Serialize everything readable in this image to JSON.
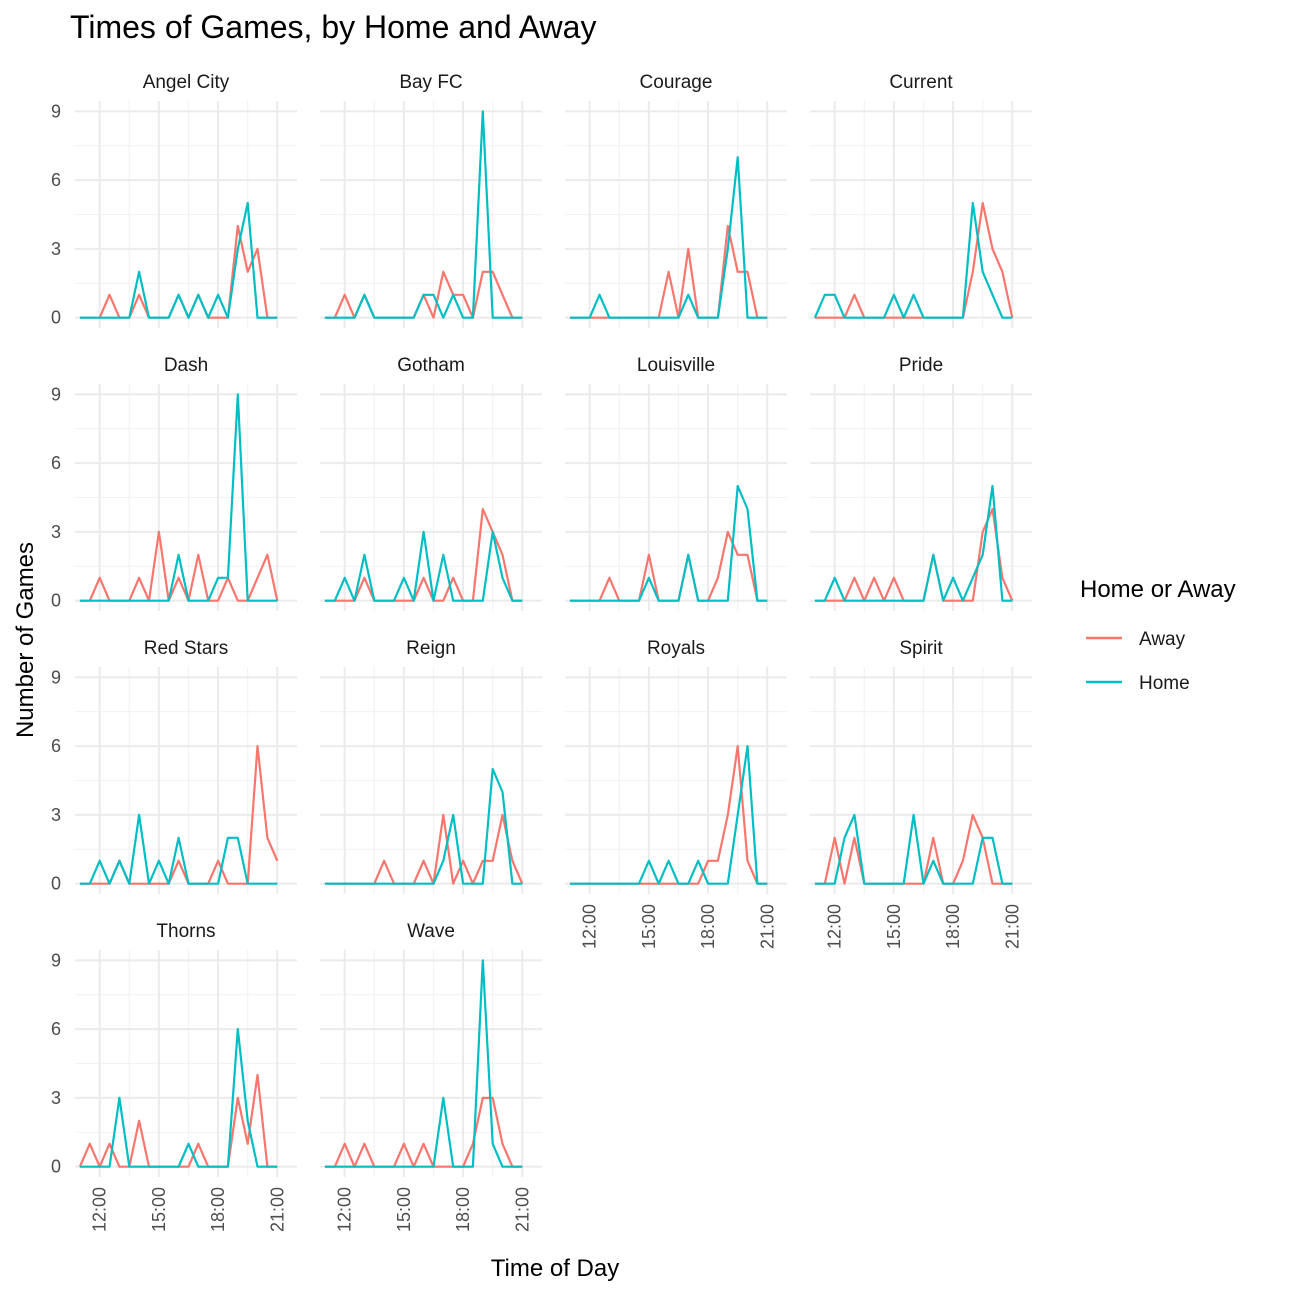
{
  "chart_data": {
    "type": "line",
    "title": "Times of Games, by Home and Away",
    "xlabel": "Time of Day",
    "ylabel": "Number of Games",
    "legend": {
      "title": "Home or Away",
      "position": "right",
      "entries": [
        {
          "name": "Away",
          "color": "#F8766D"
        },
        {
          "name": "Home",
          "color": "#00BFC4"
        }
      ]
    },
    "x_ticks": [
      12,
      15,
      18,
      21
    ],
    "x_tick_labels": [
      "12:00",
      "15:00",
      "18:00",
      "21:00"
    ],
    "xlim": [
      10.75,
      22.0
    ],
    "y_ticks": [
      0,
      3,
      6,
      9
    ],
    "y_tick_labels": [
      "0",
      "3",
      "6",
      "9"
    ],
    "ylim": [
      -0.45,
      9.45
    ],
    "grid": true,
    "x": [
      11,
      11.5,
      12,
      12.5,
      13,
      13.5,
      14,
      14.5,
      15,
      15.5,
      16,
      16.5,
      17,
      17.5,
      18,
      18.5,
      19,
      19.5,
      20,
      20.5,
      21
    ],
    "panels": [
      {
        "name": "Angel City",
        "series": [
          {
            "name": "Away",
            "values": [
              0,
              0,
              0,
              1,
              0,
              0,
              1,
              0,
              0,
              0,
              1,
              0,
              1,
              0,
              0,
              0,
              4,
              2,
              3,
              0,
              0
            ]
          },
          {
            "name": "Home",
            "values": [
              0,
              0,
              0,
              0,
              0,
              0,
              2,
              0,
              0,
              0,
              1,
              0,
              1,
              0,
              1,
              0,
              3,
              5,
              0,
              0,
              0
            ]
          }
        ]
      },
      {
        "name": "Bay FC",
        "series": [
          {
            "name": "Away",
            "values": [
              0,
              0,
              1,
              0,
              1,
              0,
              0,
              0,
              0,
              0,
              1,
              0,
              2,
              1,
              1,
              0,
              2,
              2,
              1,
              0,
              0
            ]
          },
          {
            "name": "Home",
            "values": [
              0,
              0,
              0,
              0,
              1,
              0,
              0,
              0,
              0,
              0,
              1,
              1,
              0,
              1,
              0,
              0,
              9,
              0,
              0,
              0,
              0
            ]
          }
        ]
      },
      {
        "name": "Courage",
        "series": [
          {
            "name": "Away",
            "values": [
              0,
              0,
              0,
              0,
              0,
              0,
              0,
              0,
              0,
              0,
              2,
              0,
              3,
              0,
              0,
              0,
              4,
              2,
              2,
              0,
              0
            ]
          },
          {
            "name": "Home",
            "values": [
              0,
              0,
              0,
              1,
              0,
              0,
              0,
              0,
              0,
              0,
              0,
              0,
              1,
              0,
              0,
              0,
              3,
              7,
              0,
              0,
              0
            ]
          }
        ]
      },
      {
        "name": "Current",
        "series": [
          {
            "name": "Away",
            "values": [
              0,
              0,
              0,
              0,
              1,
              0,
              0,
              0,
              0,
              0,
              0,
              0,
              0,
              0,
              0,
              0,
              2,
              5,
              3,
              2,
              0
            ]
          },
          {
            "name": "Home",
            "values": [
              0,
              1,
              1,
              0,
              0,
              0,
              0,
              0,
              1,
              0,
              1,
              0,
              0,
              0,
              0,
              0,
              5,
              2,
              1,
              0,
              0
            ]
          }
        ]
      },
      {
        "name": "Dash",
        "series": [
          {
            "name": "Away",
            "values": [
              0,
              0,
              1,
              0,
              0,
              0,
              1,
              0,
              3,
              0,
              1,
              0,
              2,
              0,
              0,
              1,
              0,
              0,
              1,
              2,
              0
            ]
          },
          {
            "name": "Home",
            "values": [
              0,
              0,
              0,
              0,
              0,
              0,
              0,
              0,
              0,
              0,
              2,
              0,
              0,
              0,
              1,
              1,
              9,
              0,
              0,
              0,
              0
            ]
          }
        ]
      },
      {
        "name": "Gotham",
        "series": [
          {
            "name": "Away",
            "values": [
              0,
              0,
              0,
              0,
              1,
              0,
              0,
              0,
              0,
              0,
              1,
              0,
              0,
              1,
              0,
              0,
              4,
              3,
              2,
              0,
              0
            ]
          },
          {
            "name": "Home",
            "values": [
              0,
              0,
              1,
              0,
              2,
              0,
              0,
              0,
              1,
              0,
              3,
              0,
              2,
              0,
              0,
              0,
              0,
              3,
              1,
              0,
              0
            ]
          }
        ]
      },
      {
        "name": "Louisville",
        "series": [
          {
            "name": "Away",
            "values": [
              0,
              0,
              0,
              0,
              1,
              0,
              0,
              0,
              2,
              0,
              0,
              0,
              2,
              0,
              0,
              1,
              3,
              2,
              2,
              0,
              0
            ]
          },
          {
            "name": "Home",
            "values": [
              0,
              0,
              0,
              0,
              0,
              0,
              0,
              0,
              1,
              0,
              0,
              0,
              2,
              0,
              0,
              0,
              0,
              5,
              4,
              0,
              0
            ]
          }
        ]
      },
      {
        "name": "Pride",
        "series": [
          {
            "name": "Away",
            "values": [
              0,
              0,
              0,
              0,
              1,
              0,
              1,
              0,
              1,
              0,
              0,
              0,
              2,
              0,
              0,
              0,
              0,
              3,
              4,
              1,
              0
            ]
          },
          {
            "name": "Home",
            "values": [
              0,
              0,
              1,
              0,
              0,
              0,
              0,
              0,
              0,
              0,
              0,
              0,
              2,
              0,
              1,
              0,
              1,
              2,
              5,
              0,
              0
            ]
          }
        ]
      },
      {
        "name": "Red Stars",
        "series": [
          {
            "name": "Away",
            "values": [
              0,
              0,
              0,
              0,
              1,
              0,
              0,
              0,
              0,
              0,
              1,
              0,
              0,
              0,
              1,
              0,
              0,
              0,
              6,
              2,
              1
            ]
          },
          {
            "name": "Home",
            "values": [
              0,
              0,
              1,
              0,
              1,
              0,
              3,
              0,
              1,
              0,
              2,
              0,
              0,
              0,
              0,
              2,
              2,
              0,
              0,
              0,
              0
            ]
          }
        ]
      },
      {
        "name": "Reign",
        "series": [
          {
            "name": "Away",
            "values": [
              0,
              0,
              0,
              0,
              0,
              0,
              1,
              0,
              0,
              0,
              1,
              0,
              3,
              0,
              1,
              0,
              1,
              1,
              3,
              1,
              0
            ]
          },
          {
            "name": "Home",
            "values": [
              0,
              0,
              0,
              0,
              0,
              0,
              0,
              0,
              0,
              0,
              0,
              0,
              1,
              3,
              0,
              0,
              0,
              5,
              4,
              0,
              0
            ]
          }
        ]
      },
      {
        "name": "Royals",
        "series": [
          {
            "name": "Away",
            "values": [
              0,
              0,
              0,
              0,
              0,
              0,
              0,
              0,
              0,
              0,
              0,
              0,
              0,
              0,
              1,
              1,
              3,
              6,
              1,
              0,
              0
            ]
          },
          {
            "name": "Home",
            "values": [
              0,
              0,
              0,
              0,
              0,
              0,
              0,
              0,
              1,
              0,
              1,
              0,
              0,
              1,
              0,
              0,
              0,
              3,
              6,
              0,
              0
            ]
          }
        ]
      },
      {
        "name": "Spirit",
        "series": [
          {
            "name": "Away",
            "values": [
              0,
              0,
              2,
              0,
              2,
              0,
              0,
              0,
              0,
              0,
              0,
              0,
              2,
              0,
              0,
              1,
              3,
              2,
              0,
              0,
              0
            ]
          },
          {
            "name": "Home",
            "values": [
              0,
              0,
              0,
              2,
              3,
              0,
              0,
              0,
              0,
              0,
              3,
              0,
              1,
              0,
              0,
              0,
              0,
              2,
              2,
              0,
              0
            ]
          }
        ]
      },
      {
        "name": "Thorns",
        "series": [
          {
            "name": "Away",
            "values": [
              0,
              1,
              0,
              1,
              0,
              0,
              2,
              0,
              0,
              0,
              0,
              0,
              1,
              0,
              0,
              0,
              3,
              1,
              4,
              0,
              0
            ]
          },
          {
            "name": "Home",
            "values": [
              0,
              0,
              0,
              0,
              3,
              0,
              0,
              0,
              0,
              0,
              0,
              1,
              0,
              0,
              0,
              0,
              6,
              2,
              0,
              0,
              0
            ]
          }
        ]
      },
      {
        "name": "Wave",
        "series": [
          {
            "name": "Away",
            "values": [
              0,
              0,
              1,
              0,
              1,
              0,
              0,
              0,
              1,
              0,
              1,
              0,
              0,
              0,
              0,
              1,
              3,
              3,
              1,
              0,
              0
            ]
          },
          {
            "name": "Home",
            "values": [
              0,
              0,
              0,
              0,
              0,
              0,
              0,
              0,
              0,
              0,
              0,
              0,
              3,
              0,
              0,
              0,
              9,
              1,
              0,
              0,
              0
            ]
          }
        ]
      }
    ]
  }
}
